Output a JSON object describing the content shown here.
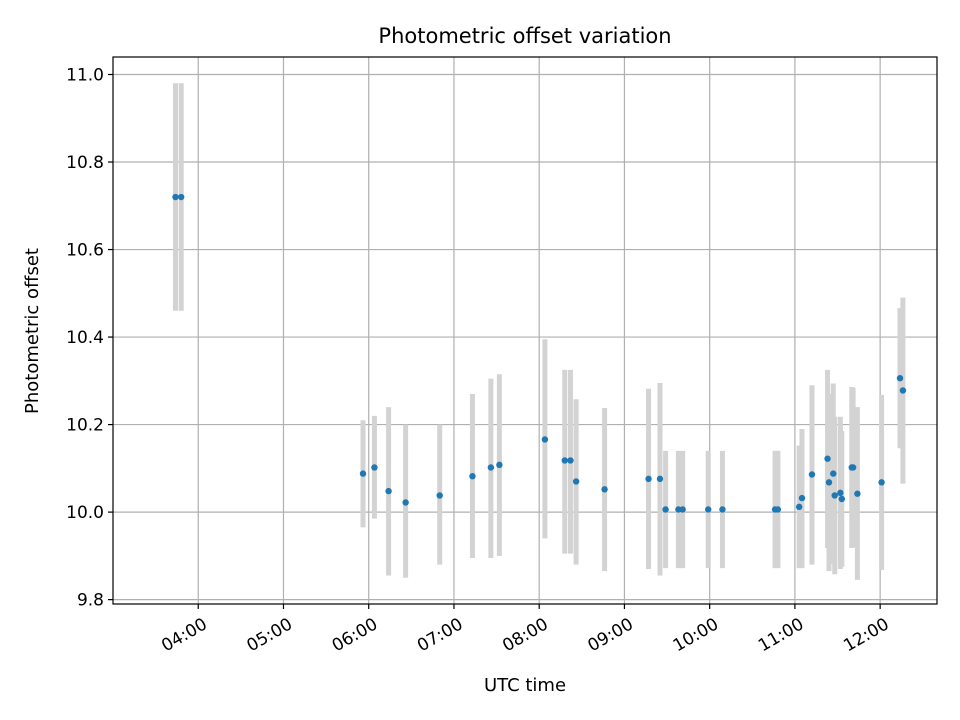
{
  "chart_data": {
    "type": "scatter",
    "title": "Photometric offset variation",
    "xlabel": "UTC time",
    "ylabel": "Photometric offset",
    "xlim_hours": [
      3.0,
      12.667
    ],
    "ylim": [
      9.79,
      11.04
    ],
    "x_ticks": [
      {
        "value": 4,
        "label": "04:00"
      },
      {
        "value": 5,
        "label": "05:00"
      },
      {
        "value": 6,
        "label": "06:00"
      },
      {
        "value": 7,
        "label": "07:00"
      },
      {
        "value": 8,
        "label": "08:00"
      },
      {
        "value": 9,
        "label": "09:00"
      },
      {
        "value": 10,
        "label": "10:00"
      },
      {
        "value": 11,
        "label": "11:00"
      },
      {
        "value": 12,
        "label": "12:00"
      }
    ],
    "y_ticks": [
      {
        "value": 9.8,
        "label": "9.8"
      },
      {
        "value": 10.0,
        "label": "10.0"
      },
      {
        "value": 10.2,
        "label": "10.2"
      },
      {
        "value": 10.4,
        "label": "10.4"
      },
      {
        "value": 10.6,
        "label": "10.6"
      },
      {
        "value": 10.8,
        "label": "10.8"
      },
      {
        "value": 11.0,
        "label": "11.0"
      }
    ],
    "grid": true,
    "marker_color": "#1f77b4",
    "errorbar_color": "#d3d3d3",
    "points": [
      {
        "x": 3.733,
        "y": 10.72,
        "low": 10.46,
        "high": 10.98
      },
      {
        "x": 3.8,
        "y": 10.72,
        "low": 10.46,
        "high": 10.98
      },
      {
        "x": 5.933,
        "y": 10.088,
        "low": 9.965,
        "high": 10.21
      },
      {
        "x": 6.067,
        "y": 10.102,
        "low": 9.985,
        "high": 10.22
      },
      {
        "x": 6.233,
        "y": 10.048,
        "low": 9.855,
        "high": 10.24
      },
      {
        "x": 6.433,
        "y": 10.022,
        "low": 9.85,
        "high": 10.2
      },
      {
        "x": 6.833,
        "y": 10.038,
        "low": 9.88,
        "high": 10.2
      },
      {
        "x": 7.217,
        "y": 10.082,
        "low": 9.895,
        "high": 10.27
      },
      {
        "x": 7.433,
        "y": 10.102,
        "low": 9.895,
        "high": 10.305
      },
      {
        "x": 7.533,
        "y": 10.108,
        "low": 9.9,
        "high": 10.315
      },
      {
        "x": 8.067,
        "y": 10.166,
        "low": 9.94,
        "high": 10.395
      },
      {
        "x": 8.3,
        "y": 10.118,
        "low": 9.905,
        "high": 10.325
      },
      {
        "x": 8.367,
        "y": 10.118,
        "low": 9.905,
        "high": 10.325
      },
      {
        "x": 8.433,
        "y": 10.07,
        "low": 9.88,
        "high": 10.258
      },
      {
        "x": 8.767,
        "y": 10.052,
        "low": 9.865,
        "high": 10.238
      },
      {
        "x": 9.283,
        "y": 10.076,
        "low": 9.87,
        "high": 10.282
      },
      {
        "x": 9.417,
        "y": 10.076,
        "low": 9.855,
        "high": 10.295
      },
      {
        "x": 9.483,
        "y": 10.006,
        "low": 9.872,
        "high": 10.14
      },
      {
        "x": 9.633,
        "y": 10.006,
        "low": 9.872,
        "high": 10.14
      },
      {
        "x": 9.683,
        "y": 10.006,
        "low": 9.872,
        "high": 10.14
      },
      {
        "x": 9.983,
        "y": 10.006,
        "low": 9.872,
        "high": 10.14
      },
      {
        "x": 10.15,
        "y": 10.006,
        "low": 9.872,
        "high": 10.14
      },
      {
        "x": 10.767,
        "y": 10.006,
        "low": 9.872,
        "high": 10.14
      },
      {
        "x": 10.8,
        "y": 10.006,
        "low": 9.872,
        "high": 10.14
      },
      {
        "x": 11.05,
        "y": 10.012,
        "low": 9.872,
        "high": 10.152
      },
      {
        "x": 11.083,
        "y": 10.032,
        "low": 9.872,
        "high": 10.19
      },
      {
        "x": 11.2,
        "y": 10.086,
        "low": 9.88,
        "high": 10.29
      },
      {
        "x": 11.383,
        "y": 10.122,
        "low": 9.918,
        "high": 10.325
      },
      {
        "x": 11.4,
        "y": 10.068,
        "low": 9.865,
        "high": 10.27
      },
      {
        "x": 11.45,
        "y": 10.088,
        "low": 9.882,
        "high": 10.294
      },
      {
        "x": 11.467,
        "y": 10.038,
        "low": 9.858,
        "high": 10.218
      },
      {
        "x": 11.533,
        "y": 10.044,
        "low": 9.87,
        "high": 10.218
      },
      {
        "x": 11.55,
        "y": 10.03,
        "low": 9.875,
        "high": 10.185
      },
      {
        "x": 11.667,
        "y": 10.102,
        "low": 9.918,
        "high": 10.286
      },
      {
        "x": 11.683,
        "y": 10.102,
        "low": 9.92,
        "high": 10.284
      },
      {
        "x": 11.733,
        "y": 10.042,
        "low": 9.845,
        "high": 10.24
      },
      {
        "x": 12.017,
        "y": 10.068,
        "low": 9.868,
        "high": 10.268
      },
      {
        "x": 12.233,
        "y": 10.306,
        "low": 10.146,
        "high": 10.466
      },
      {
        "x": 12.267,
        "y": 10.278,
        "low": 10.065,
        "high": 10.49
      }
    ]
  }
}
